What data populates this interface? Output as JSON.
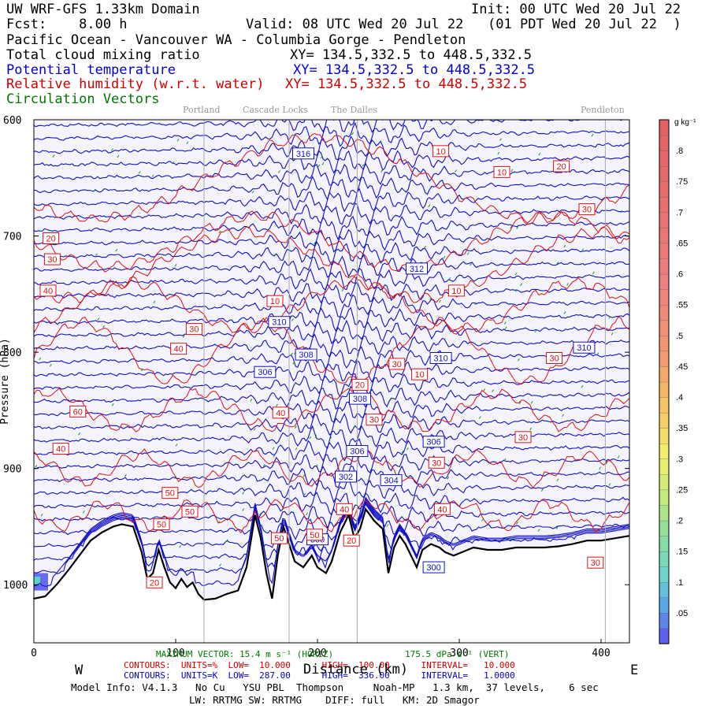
{
  "header": {
    "model": "UW WRF-GFS 1.33km Domain",
    "init": "Init: 00 UTC Wed 20 Jul 22",
    "fcst": "Fcst:    8.00 h",
    "valid": "Valid: 08 UTC Wed 20 Jul 22   (01 PDT Wed 20 Jul 22  )",
    "region": "Pacific Ocean - Vancouver WA - Columbia Gorge - Pendleton"
  },
  "fields": [
    {
      "name": "Total cloud mixing ratio",
      "xy": "XY= 134.5,332.5 to 448.5,332.5",
      "color": "#000000"
    },
    {
      "name": "Potential temperature",
      "xy": "XY= 134.5,332.5 to 448.5,332.5",
      "color": "#0000cc"
    },
    {
      "name": "Relative humidity (w.r.t. water)",
      "xy": "XY= 134.5,332.5 to 448.5,332.5",
      "color": "#d00000"
    },
    {
      "name": "Circulation Vectors",
      "xy": "",
      "color": "#007700"
    }
  ],
  "locations": [
    "Portland",
    "Cascade Locks",
    "The Dalles",
    "Pendleton"
  ],
  "chart_data": {
    "type": "cross-section",
    "xlabel": "Distance (km)",
    "ylabel": "Pressure (hPa)",
    "xlim": [
      0,
      420
    ],
    "ylim": [
      1050,
      600
    ],
    "x_ticks": [
      "0",
      "100",
      "200",
      "300",
      "400"
    ],
    "y_ticks": [
      "600",
      "700",
      "800",
      "900",
      "1000"
    ],
    "x_tick_values": [
      0,
      100,
      200,
      300,
      400
    ],
    "y_tick_values": [
      600,
      700,
      800,
      900,
      1000
    ],
    "location_positions_km": [
      120,
      180,
      228,
      403
    ],
    "direction_left": "W",
    "direction_right": "E",
    "terrain_surface_hPa": [
      [
        0,
        1012
      ],
      [
        8,
        1010
      ],
      [
        16,
        1000
      ],
      [
        24,
        988
      ],
      [
        32,
        975
      ],
      [
        40,
        962
      ],
      [
        48,
        955
      ],
      [
        56,
        950
      ],
      [
        62,
        948
      ],
      [
        70,
        950
      ],
      [
        76,
        972
      ],
      [
        80,
        995
      ],
      [
        84,
        990
      ],
      [
        88,
        970
      ],
      [
        92,
        985
      ],
      [
        96,
        998
      ],
      [
        100,
        1003
      ],
      [
        104,
        995
      ],
      [
        108,
        1002
      ],
      [
        112,
        998
      ],
      [
        116,
        1008
      ],
      [
        120,
        1013
      ],
      [
        128,
        1012
      ],
      [
        136,
        1008
      ],
      [
        144,
        1005
      ],
      [
        150,
        985
      ],
      [
        156,
        940
      ],
      [
        160,
        960
      ],
      [
        164,
        990
      ],
      [
        168,
        1012
      ],
      [
        172,
        975
      ],
      [
        176,
        950
      ],
      [
        180,
        965
      ],
      [
        184,
        980
      ],
      [
        190,
        985
      ],
      [
        196,
        975
      ],
      [
        200,
        985
      ],
      [
        206,
        990
      ],
      [
        210,
        980
      ],
      [
        216,
        955
      ],
      [
        222,
        940
      ],
      [
        226,
        960
      ],
      [
        230,
        952
      ],
      [
        234,
        935
      ],
      [
        240,
        945
      ],
      [
        246,
        952
      ],
      [
        250,
        990
      ],
      [
        254,
        968
      ],
      [
        258,
        958
      ],
      [
        262,
        965
      ],
      [
        266,
        975
      ],
      [
        270,
        985
      ],
      [
        274,
        970
      ],
      [
        280,
        965
      ],
      [
        286,
        968
      ],
      [
        290,
        972
      ],
      [
        296,
        975
      ],
      [
        302,
        972
      ],
      [
        310,
        968
      ],
      [
        320,
        970
      ],
      [
        330,
        970
      ],
      [
        340,
        968
      ],
      [
        350,
        968
      ],
      [
        360,
        968
      ],
      [
        370,
        967
      ],
      [
        380,
        965
      ],
      [
        390,
        962
      ],
      [
        400,
        962
      ],
      [
        410,
        960
      ],
      [
        420,
        958
      ]
    ],
    "theta_contour_labels": [
      {
        "value": "316",
        "x": 190,
        "p": 629
      },
      {
        "value": "312",
        "x": 270,
        "p": 728
      },
      {
        "value": "310",
        "x": 173,
        "p": 774
      },
      {
        "value": "308",
        "x": 192,
        "p": 802
      },
      {
        "value": "306",
        "x": 163,
        "p": 817
      },
      {
        "value": "310",
        "x": 287,
        "p": 805
      },
      {
        "value": "310",
        "x": 388,
        "p": 796
      },
      {
        "value": "308",
        "x": 230,
        "p": 840
      },
      {
        "value": "306",
        "x": 228,
        "p": 885
      },
      {
        "value": "306",
        "x": 282,
        "p": 877
      },
      {
        "value": "304",
        "x": 252,
        "p": 910
      },
      {
        "value": "302",
        "x": 220,
        "p": 907
      },
      {
        "value": "300",
        "x": 200,
        "p": 961
      },
      {
        "value": "300",
        "x": 282,
        "p": 985
      }
    ],
    "rh_contour_labels": [
      {
        "value": "10",
        "x": 287,
        "p": 627
      },
      {
        "value": "10",
        "x": 330,
        "p": 645
      },
      {
        "value": "20",
        "x": 372,
        "p": 640
      },
      {
        "value": "30",
        "x": 390,
        "p": 677
      },
      {
        "value": "20",
        "x": 12,
        "p": 702
      },
      {
        "value": "30",
        "x": 13,
        "p": 720
      },
      {
        "value": "40",
        "x": 10,
        "p": 747
      },
      {
        "value": "10",
        "x": 170,
        "p": 756
      },
      {
        "value": "10",
        "x": 298,
        "p": 747
      },
      {
        "value": "30",
        "x": 113,
        "p": 780
      },
      {
        "value": "40",
        "x": 102,
        "p": 797
      },
      {
        "value": "30",
        "x": 256,
        "p": 810
      },
      {
        "value": "10",
        "x": 272,
        "p": 819
      },
      {
        "value": "30",
        "x": 367,
        "p": 805
      },
      {
        "value": "20",
        "x": 230,
        "p": 828
      },
      {
        "value": "60",
        "x": 31,
        "p": 851
      },
      {
        "value": "40",
        "x": 174,
        "p": 852
      },
      {
        "value": "30",
        "x": 240,
        "p": 858
      },
      {
        "value": "30",
        "x": 345,
        "p": 873
      },
      {
        "value": "40",
        "x": 19,
        "p": 883
      },
      {
        "value": "30",
        "x": 284,
        "p": 895
      },
      {
        "value": "50",
        "x": 96,
        "p": 921
      },
      {
        "value": "50",
        "x": 110,
        "p": 937
      },
      {
        "value": "50",
        "x": 90,
        "p": 948
      },
      {
        "value": "40",
        "x": 219,
        "p": 935
      },
      {
        "value": "40",
        "x": 288,
        "p": 935
      },
      {
        "value": "50",
        "x": 173,
        "p": 960
      },
      {
        "value": "50",
        "x": 198,
        "p": 957
      },
      {
        "value": "20",
        "x": 224,
        "p": 962
      },
      {
        "value": "30",
        "x": 396,
        "p": 981
      },
      {
        "value": "20",
        "x": 85,
        "p": 998
      }
    ],
    "colorbar": {
      "unit": "g kg⁻¹",
      "labels": [
        ".8",
        ".75",
        ".7",
        ".65",
        ".6",
        ".55",
        ".5",
        ".45",
        ".4",
        ".35",
        ".3",
        ".25",
        ".2",
        ".15",
        ".1",
        ".05"
      ],
      "label_values": [
        0.8,
        0.75,
        0.7,
        0.65,
        0.6,
        0.55,
        0.5,
        0.45,
        0.4,
        0.35,
        0.3,
        0.25,
        0.2,
        0.15,
        0.1,
        0.05
      ],
      "range": [
        0,
        0.85
      ]
    }
  },
  "footer": {
    "vector_left": "MAXIMUM VECTOR: 15.4 m s⁻¹ (HORIZ)",
    "vector_right": "175.5 dPa s⁻¹ (VERT)",
    "rh_contours": "CONTOURS:  UNITS=%  LOW=  10.000      HIGH=  100.00      INTERVAL=   10.000",
    "theta_contours": "CONTOURS:  UNITS=K  LOW=  287.00      HIGH=  336.00      INTERVAL=   1.0000",
    "model_info": "Model Info: V4.1.3   No Cu   YSU PBL  Thompson     Noah-MP   1.3 km,  37 levels,    6 sec",
    "model_info2": "LW: RRTMG SW: RRTMG    DIFF: full   KM: 2D Smagor"
  }
}
